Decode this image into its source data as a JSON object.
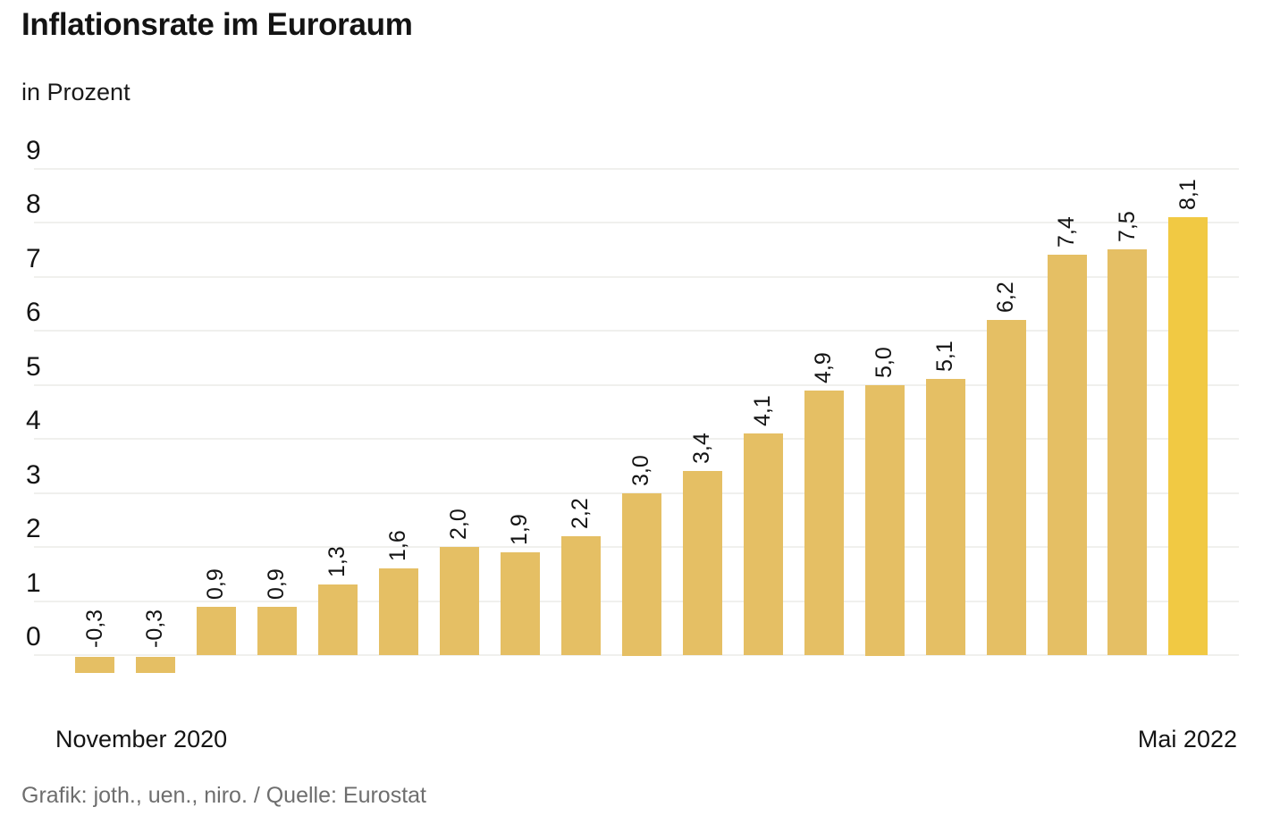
{
  "header": {
    "title": "Inflationsrate im Euroraum",
    "subtitle": "in Prozent"
  },
  "x_axis": {
    "start_label": "November 2020",
    "end_label": "Mai 2022"
  },
  "footer": {
    "credit": "Grafik: joth., uen., niro. / Quelle: Eurostat"
  },
  "colors": {
    "bar": "#e5bf64",
    "bar_highlight": "#f1c943",
    "grid": "#f0f0ed",
    "text": "#141414",
    "muted": "#6e6e6e",
    "background": "#ffffff"
  },
  "chart_data": {
    "type": "bar",
    "title": "Inflationsrate im Euroraum",
    "subtitle": "in Prozent",
    "ylabel": "in Prozent",
    "x_range": [
      "November 2020",
      "Mai 2022"
    ],
    "values": [
      -0.3,
      -0.3,
      0.9,
      0.9,
      1.3,
      1.6,
      2.0,
      1.9,
      2.2,
      3.0,
      3.4,
      4.1,
      4.9,
      5.0,
      5.1,
      6.2,
      7.4,
      7.5,
      8.1
    ],
    "value_labels": [
      "-0,3",
      "-0,3",
      "0,9",
      "0,9",
      "1,3",
      "1,6",
      "2,0",
      "1,9",
      "2,2",
      "3,0",
      "3,4",
      "4,1",
      "4,9",
      "5,0",
      "5,1",
      "6,2",
      "7,4",
      "7,5",
      "8,1"
    ],
    "highlight_index": 18,
    "y_ticks": [
      "9",
      "8",
      "7",
      "6",
      "5",
      "4",
      "3",
      "2",
      "1",
      "0"
    ],
    "ylim": [
      -0.5,
      9
    ],
    "grid": true,
    "legend": false,
    "source": "Grafik: joth., uen., niro. / Quelle: Eurostat"
  }
}
